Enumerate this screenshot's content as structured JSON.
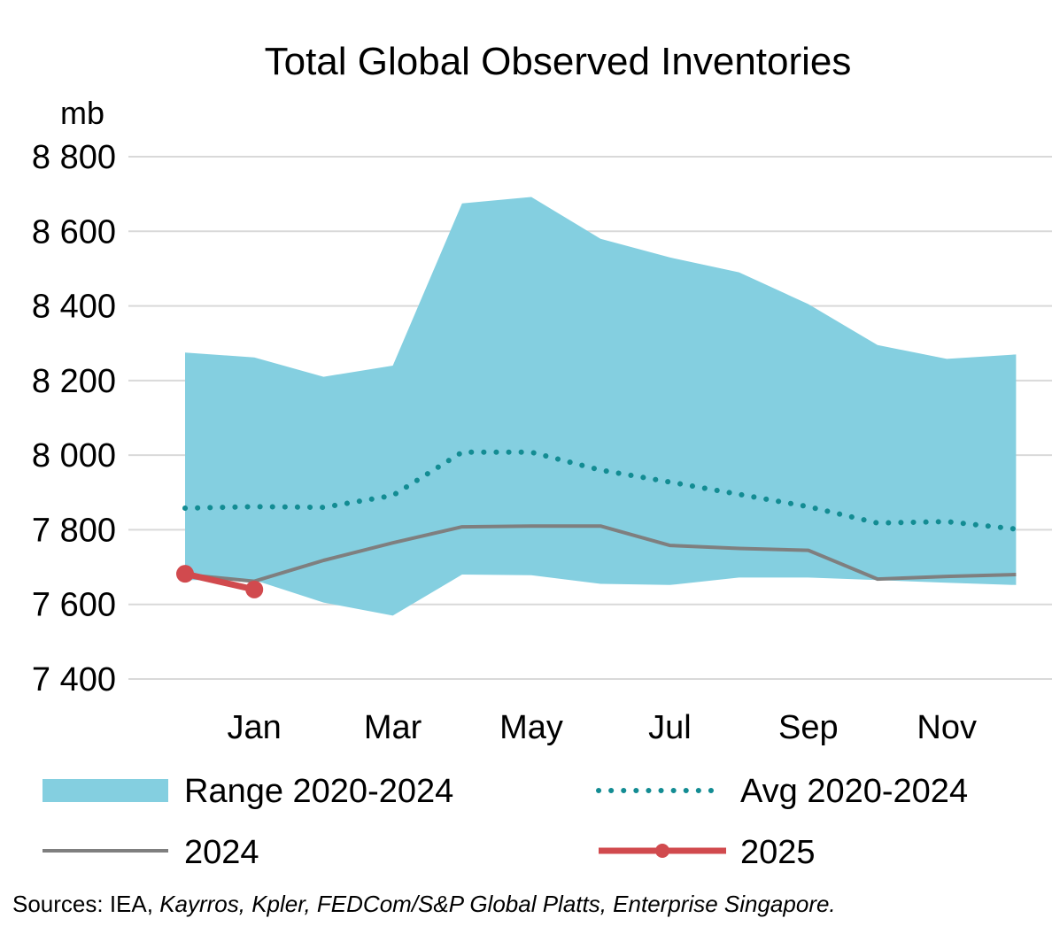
{
  "chart_data": {
    "type": "area",
    "title": "Total Global Observed Inventories",
    "unit_label": "mb",
    "ylim": [
      7400,
      8800
    ],
    "y_ticks": [
      8800,
      8600,
      8400,
      8200,
      8000,
      7800,
      7600,
      7400
    ],
    "y_tick_labels": [
      "8 800",
      "8 600",
      "8 400",
      "8 200",
      "8 000",
      "7 800",
      "7 600",
      "7 400"
    ],
    "months": [
      "Dec",
      "Jan",
      "Feb",
      "Mar",
      "Apr",
      "May",
      "Jun",
      "Jul",
      "Aug",
      "Sep",
      "Oct",
      "Nov",
      "Dec"
    ],
    "x_tick_labels": [
      {
        "month_index": 1,
        "label": "Jan"
      },
      {
        "month_index": 3,
        "label": "Mar"
      },
      {
        "month_index": 5,
        "label": "May"
      },
      {
        "month_index": 7,
        "label": "Jul"
      },
      {
        "month_index": 9,
        "label": "Sep"
      },
      {
        "month_index": 11,
        "label": "Nov"
      }
    ],
    "grid": true,
    "series": [
      {
        "name": "Range 2020-2024",
        "kind": "band",
        "color": "#84cfe0",
        "upper": [
          8275,
          8262,
          8210,
          8240,
          8675,
          8692,
          8580,
          8530,
          8490,
          8405,
          8295,
          8258,
          8270
        ],
        "lower": [
          7665,
          7665,
          7605,
          7570,
          7680,
          7678,
          7655,
          7652,
          7672,
          7672,
          7665,
          7658,
          7652
        ]
      },
      {
        "name": "Avg 2020-2024",
        "kind": "dotted",
        "color": "#138c93",
        "values": [
          7858,
          7862,
          7860,
          7892,
          8008,
          8008,
          7960,
          7928,
          7895,
          7862,
          7818,
          7822,
          7802
        ]
      },
      {
        "name": "2024",
        "kind": "line",
        "color": "#7f7f7f",
        "values": [
          7680,
          7662,
          7718,
          7765,
          7808,
          7810,
          7810,
          7758,
          7750,
          7745,
          7668,
          7675,
          7680
        ]
      },
      {
        "name": "2025",
        "kind": "line-marker",
        "color": "#d14a4e",
        "values": [
          7682,
          7640
        ]
      }
    ],
    "legend_position": "bottom"
  },
  "source": {
    "prefix": "Sources: IEA, ",
    "italic": "Kayrros, Kpler, FEDCom/S&P Global Platts, Enterprise Singapore."
  }
}
